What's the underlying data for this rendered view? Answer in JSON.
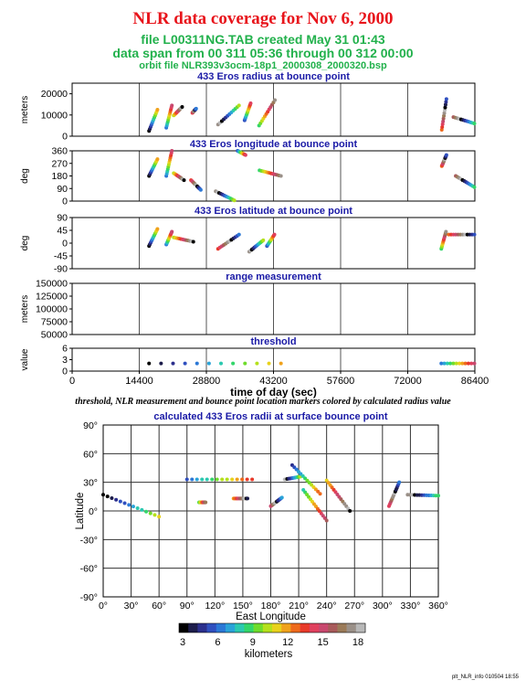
{
  "header": {
    "title": "NLR data coverage for Nov 6, 2000",
    "file_line": "file L00311NG.TAB created May 31 01:43",
    "span_line": "data span from 00 311 05:36 through 00 312 00:00",
    "orbit_line": "orbit file NLR393v3ocm-18p1_2000308_2000320.bsp"
  },
  "caption": "threshold, NLR measurement and bounce point location markers colored by calculated radius value",
  "footer": "plt_NLR_info 010504 18:55",
  "colors": {
    "title": "#e8141b",
    "subtitle": "#22b14c",
    "panel_title": "#1a1aa6"
  },
  "colorbar": {
    "ticks": [
      "3",
      "6",
      "9",
      "12",
      "15",
      "18"
    ],
    "label": "kilometers",
    "colors": [
      "#000000",
      "#1c1c4a",
      "#2b2f8c",
      "#2f4fbf",
      "#2b78d6",
      "#2aa3d8",
      "#2bc9b0",
      "#33d66a",
      "#6fdc2c",
      "#b5e01c",
      "#e8d21c",
      "#f0a21c",
      "#ee6a1c",
      "#e83a2a",
      "#e0405e",
      "#c8486e",
      "#a85a5a",
      "#9a7a58",
      "#9a9088",
      "#b8b8b8"
    ]
  },
  "chart_data": [
    {
      "type": "scatter",
      "title": "433 Eros radius at bounce point",
      "xlabel": "",
      "ylabel": "meters",
      "xlim": [
        0,
        86400
      ],
      "ylim": [
        0,
        25000
      ],
      "yticks": [
        0,
        10000,
        20000
      ],
      "ytick_labels": [
        "0",
        "10000",
        "20000"
      ],
      "grid": true,
      "segments": [
        {
          "x": [
            16500,
            18300
          ],
          "y": [
            2500,
            12500
          ]
        },
        {
          "x": [
            20200,
            21400
          ],
          "y": [
            4000,
            14500
          ]
        },
        {
          "x": [
            21800,
            23600
          ],
          "y": [
            9800,
            13800
          ]
        },
        {
          "x": [
            25800,
            26600
          ],
          "y": [
            11000,
            13000
          ]
        },
        {
          "x": [
            31300,
            35800
          ],
          "y": [
            5500,
            14500
          ]
        },
        {
          "x": [
            37000,
            38300
          ],
          "y": [
            7500,
            15500
          ]
        },
        {
          "x": [
            40100,
            43500
          ],
          "y": [
            5000,
            17000
          ]
        },
        {
          "x": [
            79300,
            80300
          ],
          "y": [
            3000,
            17500
          ]
        },
        {
          "x": [
            81800,
            86300
          ],
          "y": [
            9000,
            6000
          ]
        }
      ]
    },
    {
      "type": "scatter",
      "title": "433 Eros longitude at bounce point",
      "xlabel": "",
      "ylabel": "deg",
      "xlim": [
        0,
        86400
      ],
      "ylim": [
        0,
        360
      ],
      "yticks": [
        0,
        90,
        180,
        270,
        360
      ],
      "ytick_labels": [
        "0",
        "90",
        "180",
        "270",
        "360"
      ],
      "grid": true,
      "segments": [
        {
          "x": [
            16500,
            18300
          ],
          "y": [
            180,
            300
          ]
        },
        {
          "x": [
            20200,
            21400
          ],
          "y": [
            180,
            360
          ]
        },
        {
          "x": [
            21800,
            24000
          ],
          "y": [
            200,
            150
          ]
        },
        {
          "x": [
            25500,
            27600
          ],
          "y": [
            150,
            80
          ]
        },
        {
          "x": [
            30800,
            34800
          ],
          "y": [
            70,
            5
          ]
        },
        {
          "x": [
            35500,
            37200
          ],
          "y": [
            360,
            330
          ]
        },
        {
          "x": [
            40200,
            44800
          ],
          "y": [
            220,
            180
          ]
        },
        {
          "x": [
            79300,
            80300
          ],
          "y": [
            250,
            330
          ]
        },
        {
          "x": [
            82300,
            86300
          ],
          "y": [
            180,
            100
          ]
        }
      ]
    },
    {
      "type": "scatter",
      "title": "433 Eros latitude at bounce point",
      "xlabel": "",
      "ylabel": "deg",
      "xlim": [
        0,
        86400
      ],
      "ylim": [
        -90,
        90
      ],
      "yticks": [
        -90,
        -45,
        0,
        45,
        90
      ],
      "ytick_labels": [
        "-90",
        "-45",
        "0",
        "45",
        "90"
      ],
      "grid": true,
      "segments": [
        {
          "x": [
            16500,
            18300
          ],
          "y": [
            -10,
            50
          ]
        },
        {
          "x": [
            20200,
            21400
          ],
          "y": [
            -5,
            40
          ]
        },
        {
          "x": [
            21800,
            26000
          ],
          "y": [
            20,
            5
          ]
        },
        {
          "x": [
            31300,
            35800
          ],
          "y": [
            -20,
            30
          ]
        },
        {
          "x": [
            38000,
            41000
          ],
          "y": [
            -30,
            10
          ]
        },
        {
          "x": [
            41800,
            43400
          ],
          "y": [
            -10,
            30
          ]
        },
        {
          "x": [
            79200,
            80200
          ],
          "y": [
            -20,
            40
          ]
        },
        {
          "x": [
            80800,
            86300
          ],
          "y": [
            30,
            30
          ]
        }
      ]
    },
    {
      "type": "scatter",
      "title": "range measurement",
      "xlabel": "",
      "ylabel": "meters",
      "xlim": [
        0,
        86400
      ],
      "ylim": [
        50000,
        150000
      ],
      "yticks": [
        50000,
        75000,
        100000,
        125000,
        150000
      ],
      "ytick_labels": [
        "50000",
        "75000",
        "100000",
        "125000",
        "150000"
      ],
      "grid": true,
      "segments": []
    },
    {
      "type": "scatter",
      "title": "threshold",
      "xlabel": "time of day (sec)",
      "ylabel": "value",
      "xlim": [
        0,
        86400
      ],
      "ylim": [
        0,
        6
      ],
      "yticks": [
        0,
        3,
        6
      ],
      "ytick_labels": [
        "0",
        "3",
        "6"
      ],
      "xticks": [
        0,
        14400,
        28800,
        43200,
        57600,
        72000,
        86400
      ],
      "xtick_labels": [
        "0",
        "14400",
        "28800",
        "43200",
        "57600",
        "72000",
        "86400"
      ],
      "grid": true,
      "segments": [
        {
          "x": [
            16500,
            44800
          ],
          "y": [
            2,
            2
          ]
        },
        {
          "x": [
            79200,
            86300
          ],
          "y": [
            2,
            2
          ]
        }
      ]
    },
    {
      "type": "scatter",
      "title": "calculated 433 Eros radii at surface bounce point",
      "xlabel": "East Longitude",
      "ylabel": "Latitude",
      "xlim": [
        0,
        360
      ],
      "ylim": [
        -90,
        90
      ],
      "xticks": [
        0,
        30,
        60,
        90,
        120,
        150,
        180,
        210,
        240,
        270,
        300,
        330,
        360
      ],
      "xtick_labels": [
        "0°",
        "30°",
        "60°",
        "90°",
        "120°",
        "150°",
        "180°",
        "210°",
        "240°",
        "270°",
        "300°",
        "330°",
        "360°"
      ],
      "yticks": [
        -90,
        -60,
        -30,
        0,
        30,
        60,
        90
      ],
      "ytick_labels": [
        "-90°",
        "-60°",
        "-30°",
        "0°",
        "30°",
        "60°",
        "90°"
      ],
      "grid": true,
      "segments": [
        {
          "x": [
            0,
            60
          ],
          "y": [
            17,
            -6
          ]
        },
        {
          "x": [
            90,
            160
          ],
          "y": [
            33,
            33
          ]
        },
        {
          "x": [
            103,
            110
          ],
          "y": [
            9,
            9
          ]
        },
        {
          "x": [
            140,
            155
          ],
          "y": [
            13,
            13
          ]
        },
        {
          "x": [
            180,
            192
          ],
          "y": [
            5,
            14
          ]
        },
        {
          "x": [
            195,
            212
          ],
          "y": [
            33,
            36
          ]
        },
        {
          "x": [
            203,
            233
          ],
          "y": [
            48,
            18
          ]
        },
        {
          "x": [
            215,
            240
          ],
          "y": [
            22,
            -10
          ]
        },
        {
          "x": [
            240,
            265
          ],
          "y": [
            32,
            0
          ]
        },
        {
          "x": [
            307,
            318
          ],
          "y": [
            5,
            30
          ]
        },
        {
          "x": [
            327,
            360
          ],
          "y": [
            17,
            16
          ]
        }
      ]
    }
  ]
}
